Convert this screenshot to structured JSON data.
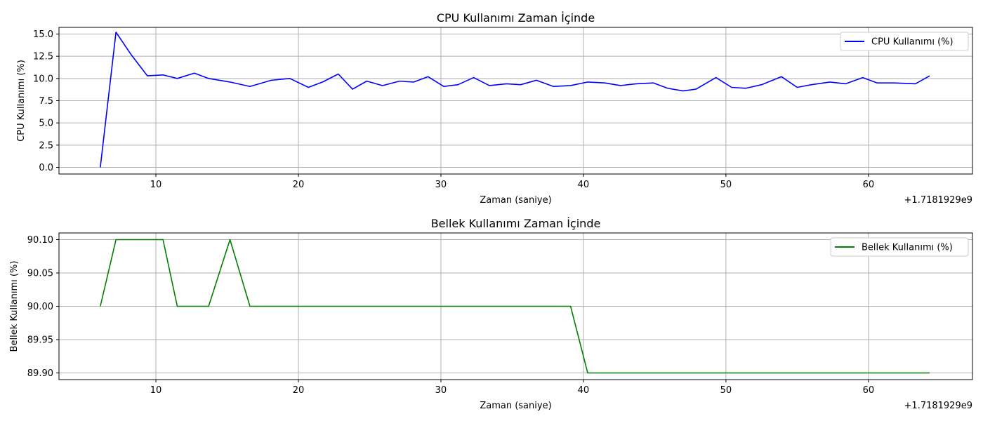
{
  "chart_data": [
    {
      "type": "line",
      "title": "CPU Kullanımı Zaman İçinde",
      "xlabel": "Zaman (saniye)",
      "ylabel": "CPU Kullanımı (%)",
      "x_offset_label": "+1.7181929e9",
      "xlim": [
        3.2,
        67.3
      ],
      "ylim": [
        -0.75,
        15.75
      ],
      "xticks": [
        10,
        20,
        30,
        40,
        50,
        60
      ],
      "yticks": [
        "0.0",
        "2.5",
        "5.0",
        "7.5",
        "10.0",
        "12.5",
        "15.0"
      ],
      "grid": true,
      "legend_position": "top-right",
      "series": [
        {
          "name": "CPU Kullanımı (%)",
          "color": "#0000ff",
          "x": [
            6.1,
            7.2,
            8.3,
            9.4,
            10.5,
            11.5,
            12.7,
            13.7,
            15.2,
            16.6,
            18.1,
            19.4,
            20.7,
            21.7,
            22.8,
            23.8,
            24.8,
            25.9,
            27.1,
            28.1,
            29.1,
            30.2,
            31.2,
            32.3,
            33.4,
            34.6,
            35.6,
            36.7,
            37.9,
            39.1,
            40.3,
            41.5,
            42.6,
            43.7,
            44.9,
            45.9,
            47.0,
            47.9,
            49.3,
            50.4,
            51.4,
            52.5,
            53.9,
            55.0,
            56.0,
            57.3,
            58.4,
            59.6,
            60.6,
            61.8,
            63.3,
            64.3
          ],
          "y": [
            0.0,
            15.2,
            12.6,
            10.3,
            10.4,
            10.0,
            10.6,
            10.0,
            9.6,
            9.1,
            9.8,
            10.0,
            9.0,
            9.6,
            10.5,
            8.8,
            9.7,
            9.2,
            9.7,
            9.6,
            10.2,
            9.1,
            9.3,
            10.1,
            9.2,
            9.4,
            9.3,
            9.8,
            9.1,
            9.2,
            9.6,
            9.5,
            9.2,
            9.4,
            9.5,
            8.9,
            8.6,
            8.8,
            10.1,
            9.0,
            8.9,
            9.3,
            10.2,
            9.0,
            9.3,
            9.6,
            9.4,
            10.1,
            9.5,
            9.5,
            9.4,
            10.3
          ]
        }
      ]
    },
    {
      "type": "line",
      "title": "Bellek Kullanımı Zaman İçinde",
      "xlabel": "Zaman (saniye)",
      "ylabel": "Bellek Kullanımı (%)",
      "x_offset_label": "+1.7181929e9",
      "xlim": [
        3.2,
        67.3
      ],
      "ylim": [
        89.89,
        90.11
      ],
      "xticks": [
        10,
        20,
        30,
        40,
        50,
        60
      ],
      "yticks": [
        "89.90",
        "89.95",
        "90.00",
        "90.05",
        "90.10"
      ],
      "grid": true,
      "legend_position": "top-right",
      "series": [
        {
          "name": "Bellek Kullanımı (%)",
          "color": "#008000",
          "x": [
            6.1,
            7.2,
            10.5,
            11.5,
            13.7,
            15.2,
            16.6,
            39.1,
            40.3,
            64.3
          ],
          "y": [
            90.0,
            90.1,
            90.1,
            90.0,
            90.0,
            90.1,
            90.0,
            90.0,
            89.9,
            89.9
          ]
        }
      ]
    }
  ]
}
